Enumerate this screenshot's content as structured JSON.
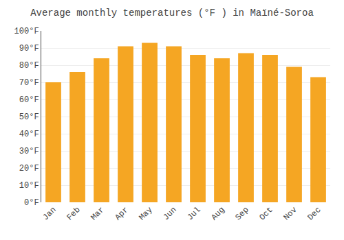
{
  "chart_data": {
    "type": "bar",
    "title": "Average monthly temperatures (°F ) in Maïné-Soroa",
    "categories": [
      "Jan",
      "Feb",
      "Mar",
      "Apr",
      "May",
      "Jun",
      "Jul",
      "Aug",
      "Sep",
      "Oct",
      "Nov",
      "Dec"
    ],
    "values": [
      70,
      76,
      84,
      91,
      93,
      91,
      86,
      84,
      87,
      86,
      79,
      73
    ],
    "color": "#F5A623",
    "ylim": [
      0,
      100
    ],
    "yticks": [
      {
        "value": 0,
        "label": "0°F"
      },
      {
        "value": 10,
        "label": "10°F"
      },
      {
        "value": 20,
        "label": "20°F"
      },
      {
        "value": 30,
        "label": "30°F"
      },
      {
        "value": 40,
        "label": "40°F"
      },
      {
        "value": 50,
        "label": "50°F"
      },
      {
        "value": 60,
        "label": "60°F"
      },
      {
        "value": 70,
        "label": "70°F"
      },
      {
        "value": 80,
        "label": "80°F"
      },
      {
        "value": 90,
        "label": "90°F"
      },
      {
        "value": 100,
        "label": "100°F"
      }
    ],
    "grid": true
  }
}
